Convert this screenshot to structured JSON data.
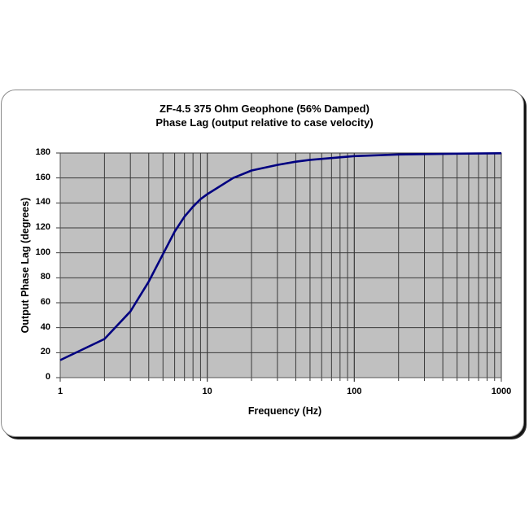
{
  "chart_data": {
    "type": "line",
    "title": "ZF-4.5  375 Ohm Geophone (56% Damped)",
    "subtitle": "Phase Lag (output relative to case velocity)",
    "xlabel": "Frequency (Hz)",
    "ylabel": "Output Phase Lag (degrees)",
    "xscale": "log",
    "xlim": [
      1,
      1000
    ],
    "ylim": [
      0,
      180
    ],
    "x_ticks": [
      "1",
      "10",
      "100",
      "1000"
    ],
    "y_ticks": [
      "0",
      "20",
      "40",
      "60",
      "80",
      "100",
      "120",
      "140",
      "160",
      "180"
    ],
    "grid": true,
    "plot_background": "#c0c0c0",
    "line_color": "#000080",
    "legend": null,
    "series": [
      {
        "name": "Phase Lag",
        "x": [
          1,
          2,
          3,
          4,
          5,
          6,
          7,
          8,
          9,
          10,
          15,
          20,
          30,
          40,
          50,
          100,
          200,
          500,
          1000
        ],
        "values": [
          14,
          31,
          53,
          77,
          99,
          117,
          129,
          137,
          143,
          147,
          160,
          166,
          170.5,
          173,
          174.5,
          177.5,
          178.8,
          179.5,
          179.8
        ]
      }
    ]
  }
}
